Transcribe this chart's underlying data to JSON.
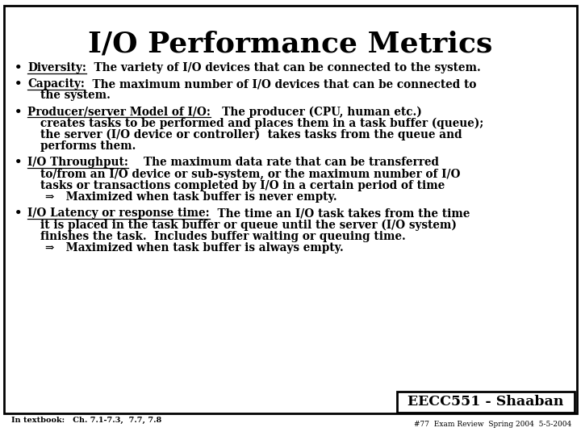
{
  "title": "I/O Performance Metrics",
  "background_color": "#ffffff",
  "border_color": "#000000",
  "title_fontsize": 26,
  "body_fontsize": 9.8,
  "sub_bullet_fontsize": 9.8,
  "bullet_items": [
    {
      "label": "Diversity:",
      "text": "  The variety of I/O devices that can be connected to the system.",
      "extra_lines": []
    },
    {
      "label": "Capacity:",
      "text": "  The maximum number of I/O devices that can be connected to",
      "extra_lines": [
        "the system."
      ]
    },
    {
      "label": "Producer/server Model of I/O:",
      "text": "   The producer (CPU, human etc.)",
      "extra_lines": [
        "creates tasks to be performed and places them in a task buffer (queue);",
        "the server (I/O device or controller)  takes tasks from the queue and",
        "performs them."
      ]
    },
    {
      "label": "I/O Throughput:",
      "text": "    The maximum data rate that can be transferred",
      "extra_lines": [
        "to/from an I/O device or sub-system, or the maximum number of I/O",
        "tasks or transactions completed by I/O in a certain period of time"
      ],
      "sub_bullet": "⇒   Maximized when task buffer is never empty."
    },
    {
      "label": "I/O Latency or response time:",
      "text": "  The time an I/O task takes from the time",
      "extra_lines": [
        "it is placed in the task buffer or queue until the server (I/O system)",
        "finishes the task.  Includes buffer waiting or queuing time."
      ],
      "sub_bullet": "⇒   Maximized when task buffer is always empty."
    }
  ],
  "footer_left": "In textbook:   Ch. 7.1-7.3,  7.7, 7.8",
  "footer_right": "#77  Exam Review  Spring 2004  5-5-2004",
  "badge_text": "EECC551 - Shaaban",
  "footer_fontsize": 7.0,
  "badge_fontsize": 12.5
}
